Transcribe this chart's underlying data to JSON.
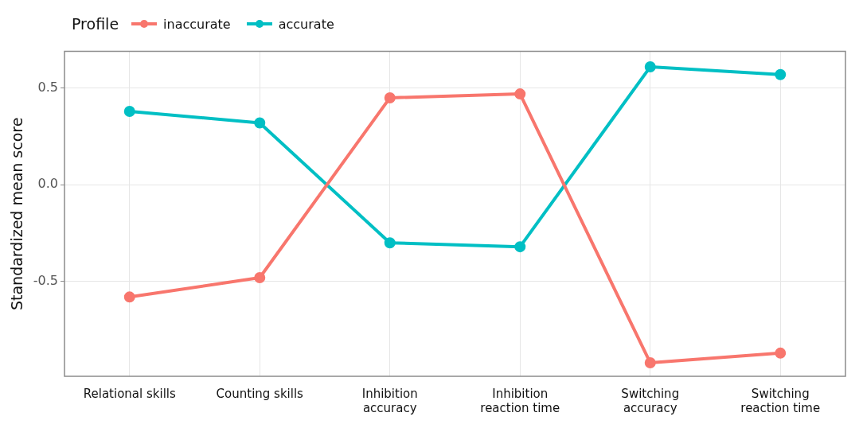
{
  "chart_data": {
    "type": "line",
    "ylabel": "Standardized mean score",
    "legend_title": "Profile",
    "legend": "top left",
    "grid": true,
    "marker": "circle",
    "categories": [
      "Relational skills",
      "Counting skills",
      "Inhibition\naccuracy",
      "Inhibition\nreaction time",
      "Switching\naccuracy",
      "Switching\nreaction time"
    ],
    "ylim": [
      -0.99,
      0.69
    ],
    "yticks": [
      {
        "value": -0.5,
        "label": "-0.5"
      },
      {
        "value": 0,
        "label": "0.0"
      },
      {
        "value": 0.5,
        "label": "0.5"
      }
    ],
    "series": [
      {
        "name": "inaccurate",
        "color": "#f8766d",
        "values": [
          -0.58,
          -0.48,
          0.45,
          0.47,
          -0.92,
          -0.87
        ]
      },
      {
        "name": "accurate",
        "color": "#00bfc4",
        "values": [
          0.38,
          0.32,
          -0.3,
          -0.32,
          0.61,
          0.57
        ]
      }
    ]
  }
}
